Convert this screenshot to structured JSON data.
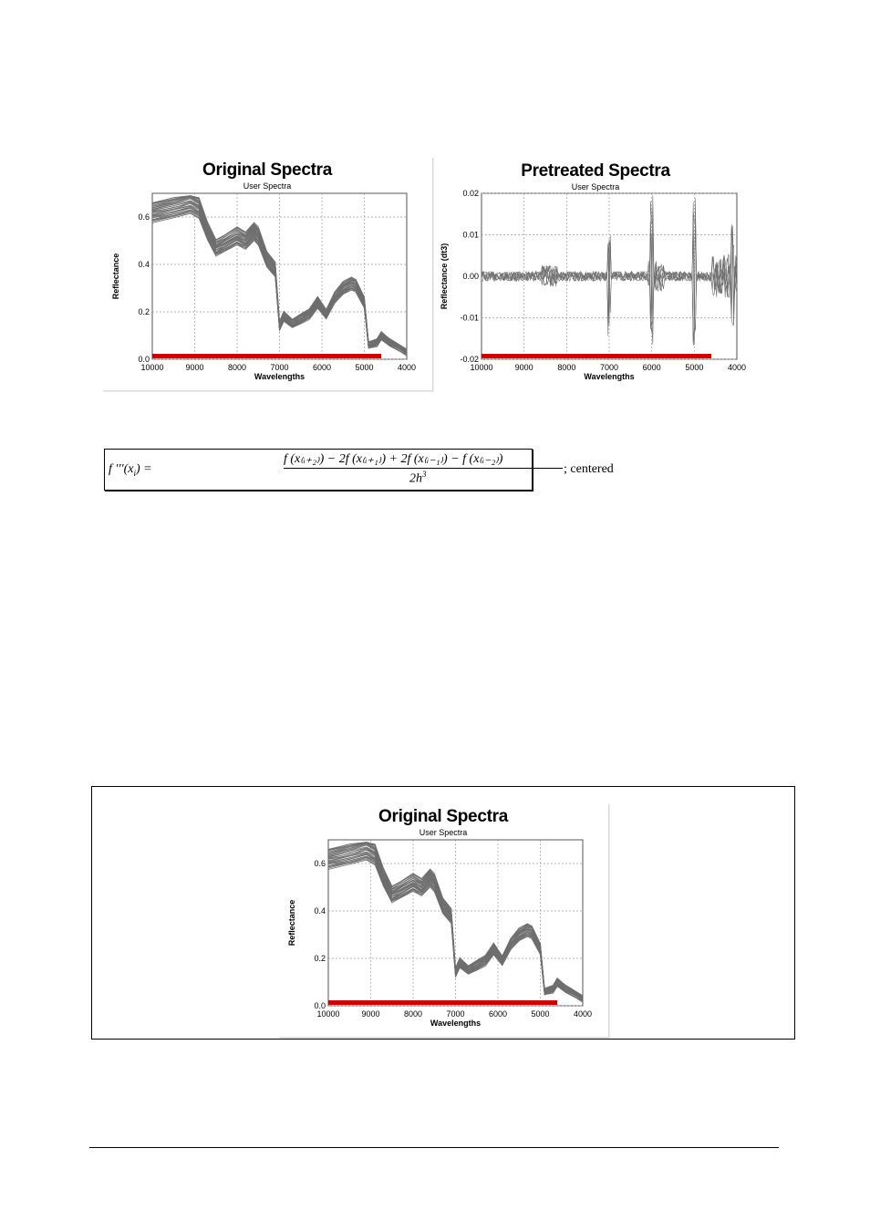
{
  "charts": {
    "original": {
      "title": "Original Spectra",
      "subtitle": "User Spectra",
      "xlabel": "Wavelengths",
      "ylabel": "Reflectance",
      "xticks": [
        "10000",
        "9000",
        "8000",
        "7000",
        "6000",
        "5000",
        "4000"
      ],
      "yticks": [
        "0.6",
        "0.4",
        "0.2",
        "0.0"
      ]
    },
    "pretreated": {
      "title": "Pretreated Spectra",
      "subtitle": "User Spectra",
      "xlabel": "Wavelengths",
      "ylabel": "Reflectance (dt3)",
      "xticks": [
        "10000",
        "9000",
        "8000",
        "7000",
        "6000",
        "5000",
        "4000"
      ],
      "yticks": [
        "0.02",
        "0.01",
        "0.00",
        "-0.01",
        "-0.02"
      ]
    }
  },
  "formula": {
    "lhs": "f ′′′(x",
    "lhs_sub": "i",
    "lhs_end": ") =",
    "numerator": "f (x₍ᵢ₊₂₎) − 2f (x₍ᵢ₊₁₎) + 2f (x₍ᵢ₋₁₎) − f (x₍ᵢ₋₂₎)",
    "denominator": "2h",
    "denominator_sup": "3",
    "suffix": "; centered"
  },
  "colors": {
    "spectra_line": "#6e6e6e",
    "grid": "#9a9a9a",
    "range_bar": "#cc0000"
  },
  "chart_data": [
    {
      "id": "original",
      "type": "line",
      "title": "Original Spectra",
      "subtitle": "User Spectra",
      "xlabel": "Wavelengths",
      "ylabel": "Reflectance",
      "xlim": [
        10000,
        4000
      ],
      "ylim": [
        0.0,
        0.7
      ],
      "grid": true,
      "series_count": 40,
      "series_description": "multiple overlaid spectra, mean profile shown",
      "mean_spectrum": {
        "x": [
          10000,
          9500,
          9100,
          8900,
          8700,
          8500,
          8300,
          8000,
          7800,
          7600,
          7500,
          7300,
          7100,
          7000,
          6900,
          6700,
          6500,
          6300,
          6100,
          5900,
          5700,
          5500,
          5300,
          5200,
          5000,
          4900,
          4700,
          4600,
          4400,
          4200,
          4000
        ],
        "y": [
          0.62,
          0.64,
          0.66,
          0.64,
          0.54,
          0.47,
          0.49,
          0.52,
          0.5,
          0.54,
          0.52,
          0.42,
          0.38,
          0.14,
          0.18,
          0.15,
          0.17,
          0.19,
          0.24,
          0.19,
          0.26,
          0.3,
          0.32,
          0.31,
          0.24,
          0.06,
          0.07,
          0.1,
          0.07,
          0.05,
          0.03
        ]
      },
      "spread": 0.09,
      "selected_range": [
        10000,
        4600
      ]
    },
    {
      "id": "pretreated",
      "type": "line",
      "title": "Pretreated Spectra",
      "subtitle": "User Spectra",
      "xlabel": "Wavelengths",
      "ylabel": "Reflectance (dt3)",
      "xlim": [
        10000,
        4000
      ],
      "ylim": [
        -0.02,
        0.02
      ],
      "grid": true,
      "series_description": "third-derivative spectra, noise around 0 with spikes",
      "spikes": [
        {
          "x": 7000,
          "min": -0.017,
          "max": 0.01
        },
        {
          "x": 6000,
          "min": -0.019,
          "max": 0.02
        },
        {
          "x": 5000,
          "min": -0.018,
          "max": 0.019
        },
        {
          "x": 4100,
          "min": -0.013,
          "max": 0.013
        }
      ],
      "selected_range": [
        10000,
        4600
      ]
    },
    {
      "id": "original-repeat",
      "type": "line",
      "title": "Original Spectra",
      "subtitle": "User Spectra",
      "xlabel": "Wavelengths",
      "ylabel": "Reflectance",
      "xlim": [
        10000,
        4000
      ],
      "ylim": [
        0.0,
        0.7
      ],
      "grid": true,
      "selected_range": [
        10000,
        4600
      ]
    }
  ]
}
